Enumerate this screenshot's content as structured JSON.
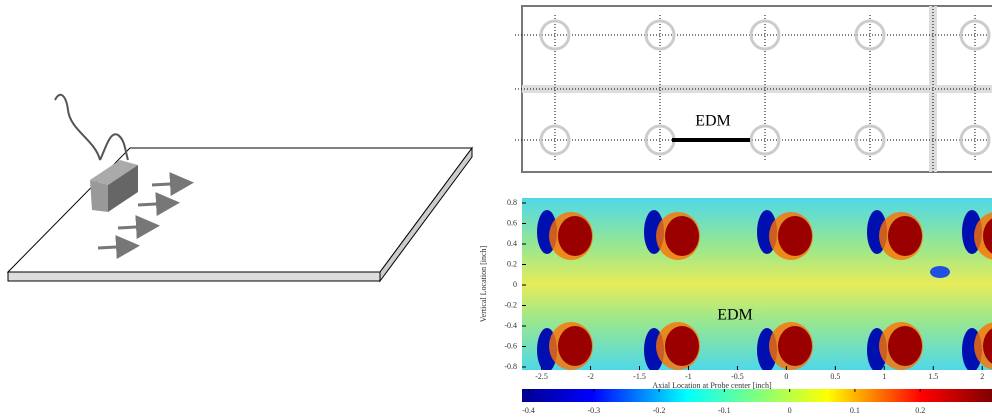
{
  "diagram": {
    "label": "EDM"
  },
  "heatmap": {
    "annotation": "EDM",
    "y_label": "Vertical Location [inch]",
    "x_label": "Axial Location at Probe center [inch]",
    "ylim": [
      -0.8,
      0.8
    ],
    "yticks": [
      0.8,
      0.6,
      0.4,
      0.2,
      0,
      -0.2,
      -0.4,
      -0.6,
      -0.8
    ],
    "xlim": [
      -2.7,
      2.1
    ],
    "xticks": [
      -2.5,
      -2,
      -1.5,
      -1,
      -0.5,
      0,
      0.5,
      1,
      1.5,
      2
    ],
    "colorbar_lim": [
      -0.41,
      0.31
    ],
    "colorbar_ticks": [
      -0.4,
      -0.3,
      -0.2,
      -0.1,
      0,
      0.1,
      0.2
    ]
  }
}
